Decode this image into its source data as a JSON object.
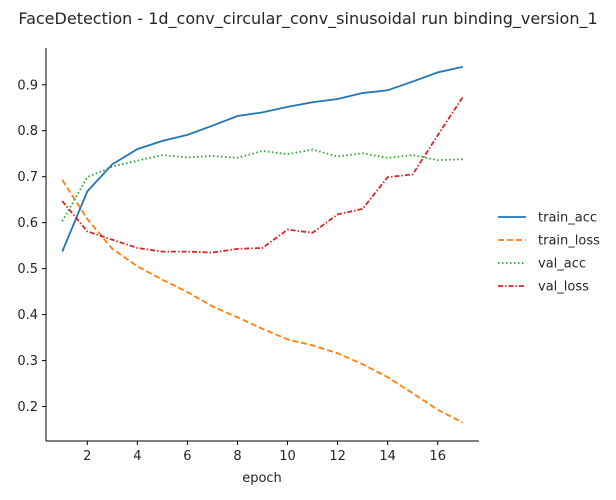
{
  "chart_data": {
    "type": "line",
    "title": "FaceDetection - 1d_conv_circular_conv_sinusoidal run binding_version_1",
    "xlabel": "epoch",
    "ylabel": "",
    "x": [
      1,
      2,
      3,
      4,
      5,
      6,
      7,
      8,
      9,
      10,
      11,
      12,
      13,
      14,
      15,
      16,
      17
    ],
    "xlim": [
      0.35,
      17.65
    ],
    "ylim": [
      0.125,
      0.98
    ],
    "xticks": [
      2,
      4,
      6,
      8,
      10,
      12,
      14,
      16
    ],
    "yticks": [
      0.2,
      0.3,
      0.4,
      0.5,
      0.6,
      0.7,
      0.8,
      0.9
    ],
    "ytick_labels": [
      "0.2",
      "0.3",
      "0.4",
      "0.5",
      "0.6",
      "0.7",
      "0.8",
      "0.9"
    ],
    "legend_position": "right",
    "grid": false,
    "series": [
      {
        "name": "train_acc",
        "color": "#1f77b4",
        "dash": "solid",
        "values": [
          0.537,
          0.668,
          0.727,
          0.76,
          0.778,
          0.791,
          0.811,
          0.832,
          0.84,
          0.852,
          0.862,
          0.869,
          0.882,
          0.888,
          0.907,
          0.927,
          0.939
        ]
      },
      {
        "name": "train_loss",
        "color": "#ff7f0e",
        "dash": "dashed",
        "values": [
          0.693,
          0.608,
          0.543,
          0.505,
          0.476,
          0.449,
          0.418,
          0.394,
          0.369,
          0.346,
          0.333,
          0.316,
          0.292,
          0.264,
          0.229,
          0.193,
          0.165
        ]
      },
      {
        "name": "val_acc",
        "color": "#2ca02c",
        "dash": "dotted",
        "values": [
          0.603,
          0.699,
          0.722,
          0.735,
          0.747,
          0.742,
          0.745,
          0.741,
          0.756,
          0.749,
          0.759,
          0.744,
          0.751,
          0.741,
          0.747,
          0.736,
          0.738
        ]
      },
      {
        "name": "val_loss",
        "color": "#d62728",
        "dash": "dashdot",
        "values": [
          0.647,
          0.581,
          0.563,
          0.545,
          0.537,
          0.537,
          0.535,
          0.543,
          0.545,
          0.585,
          0.578,
          0.618,
          0.63,
          0.699,
          0.705,
          0.79,
          0.873
        ]
      }
    ]
  }
}
